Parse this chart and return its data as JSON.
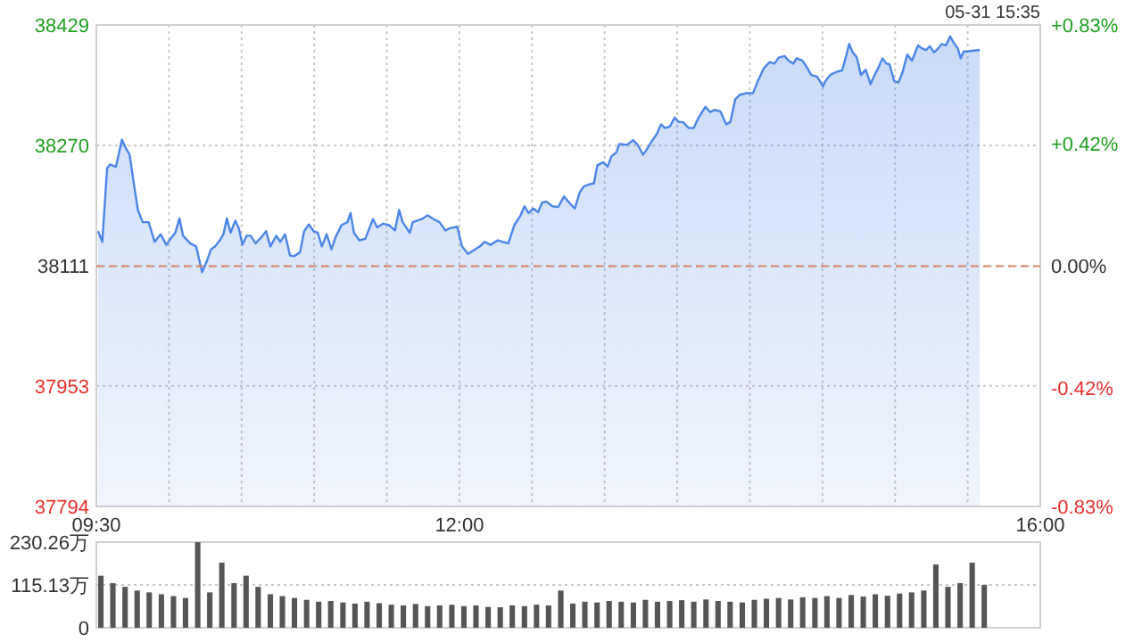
{
  "chart_data": [
    {
      "type": "area",
      "annotations": [
        "05-31 15:35"
      ],
      "color": "#4a86e8",
      "x": [
        9.512,
        9.541,
        9.574,
        9.594,
        9.635,
        9.676,
        9.704,
        9.729,
        9.758,
        9.786,
        9.819,
        9.86,
        9.901,
        9.942,
        9.982,
        10.011,
        10.044,
        10.072,
        10.097,
        10.146,
        10.187,
        10.228,
        10.26,
        10.289,
        10.318,
        10.35,
        10.375,
        10.399,
        10.424,
        10.457,
        10.481,
        10.506,
        10.534,
        10.563,
        10.596,
        10.636,
        10.669,
        10.698,
        10.739,
        10.767,
        10.8,
        10.833,
        10.861,
        10.902,
        10.931,
        10.963,
        10.996,
        11.025,
        11.053,
        11.086,
        11.119,
        11.147,
        11.188,
        11.229,
        11.25,
        11.274,
        11.311,
        11.352,
        11.405,
        11.434,
        11.475,
        11.515,
        11.556,
        11.585,
        11.609,
        11.658,
        11.679,
        11.74,
        11.781,
        11.822,
        11.863,
        11.904,
        11.936,
        11.985,
        12.018,
        12.059,
        12.1,
        12.141,
        12.174,
        12.214,
        12.264,
        12.296,
        12.337,
        12.378,
        12.419,
        12.448,
        12.476,
        12.509,
        12.542,
        12.57,
        12.599,
        12.64,
        12.68,
        12.721,
        12.754,
        12.795,
        12.828,
        12.856,
        12.897,
        12.926,
        12.95,
        12.991,
        13.02,
        13.048,
        13.081,
        13.101,
        13.155,
        13.195,
        13.224,
        13.265,
        13.294,
        13.326,
        13.359,
        13.388,
        13.416,
        13.449,
        13.482,
        13.51,
        13.539,
        13.58,
        13.613,
        13.645,
        13.674,
        13.694,
        13.727,
        13.756,
        13.797,
        13.838,
        13.866,
        13.899,
        13.932,
        13.973,
        14.022,
        14.055,
        14.096,
        14.137,
        14.169,
        14.198,
        14.239,
        14.267,
        14.3,
        14.321,
        14.361,
        14.39,
        14.423,
        14.463,
        14.504,
        14.52,
        14.553,
        14.594,
        14.635,
        14.655,
        14.684,
        14.708,
        14.737,
        14.765,
        14.798,
        14.831,
        14.859,
        14.888,
        14.913,
        14.941,
        14.962,
        14.994,
        15.023,
        15.052,
        15.084,
        15.117,
        15.158,
        15.186,
        15.215,
        15.239,
        15.268,
        15.297,
        15.321,
        15.35,
        15.379,
        15.403,
        15.432,
        15.452,
        15.472,
        15.493,
        15.583
      ],
      "values": [
        38157,
        38143,
        38240,
        38245,
        38242,
        38278,
        38266,
        38258,
        38220,
        38185,
        38169,
        38169,
        38143,
        38153,
        38139,
        38147,
        38155,
        38174,
        38151,
        38141,
        38137,
        38103,
        38117,
        38133,
        38137,
        38145,
        38153,
        38174,
        38155,
        38171,
        38161,
        38139,
        38151,
        38151,
        38141,
        38149,
        38157,
        38137,
        38151,
        38143,
        38153,
        38125,
        38124,
        38129,
        38157,
        38166,
        38157,
        38155,
        38137,
        38153,
        38133,
        38149,
        38165,
        38169,
        38181,
        38155,
        38145,
        38147,
        38173,
        38162,
        38167,
        38165,
        38158,
        38185,
        38169,
        38155,
        38169,
        38173,
        38178,
        38173,
        38169,
        38158,
        38161,
        38163,
        38137,
        38127,
        38132,
        38137,
        38143,
        38139,
        38145,
        38143,
        38141,
        38165,
        38177,
        38190,
        38181,
        38187,
        38182,
        38195,
        38196,
        38190,
        38189,
        38203,
        38195,
        38187,
        38208,
        38216,
        38219,
        38220,
        38244,
        38248,
        38242,
        38256,
        38261,
        38272,
        38271,
        38277,
        38272,
        38258,
        38266,
        38276,
        38285,
        38298,
        38293,
        38295,
        38307,
        38301,
        38301,
        38293,
        38293,
        38306,
        38315,
        38321,
        38314,
        38317,
        38315,
        38298,
        38301,
        38331,
        38337,
        38339,
        38339,
        38355,
        38372,
        38380,
        38378,
        38386,
        38388,
        38382,
        38378,
        38385,
        38382,
        38374,
        38363,
        38361,
        38348,
        38355,
        38363,
        38367,
        38369,
        38382,
        38404,
        38393,
        38386,
        38363,
        38370,
        38351,
        38363,
        38374,
        38385,
        38378,
        38377,
        38355,
        38353,
        38367,
        38390,
        38382,
        38402,
        38398,
        38396,
        38401,
        38393,
        38398,
        38404,
        38402,
        38414,
        38406,
        38398,
        38385,
        38394,
        38394,
        38396
      ],
      "xlim": [
        9.5,
        16
      ],
      "xticks": [
        {
          "value": 9.5,
          "label": "09:30"
        },
        {
          "value": 10,
          "label": null
        },
        {
          "value": 10.5,
          "label": null
        },
        {
          "value": 11,
          "label": null
        },
        {
          "value": 11.5,
          "label": null
        },
        {
          "value": 12,
          "label": "12:00"
        },
        {
          "value": 12.5,
          "label": null
        },
        {
          "value": 13,
          "label": null
        },
        {
          "value": 13.5,
          "label": null
        },
        {
          "value": 14,
          "label": null
        },
        {
          "value": 14.5,
          "label": null
        },
        {
          "value": 15,
          "label": null
        },
        {
          "value": 15.5,
          "label": null
        },
        {
          "value": 16,
          "label": "16:00"
        }
      ],
      "ylim": [
        37794,
        38429
      ],
      "yticks": [
        37794,
        37953,
        38111,
        38270,
        38429
      ],
      "y2lim": [
        -0.83,
        0.83
      ],
      "y2ticks": [
        {
          "value": -0.83,
          "label": "-0.83%"
        },
        {
          "value": -0.42,
          "label": "-0.42%"
        },
        {
          "value": 0,
          "label": "0.00%"
        },
        {
          "value": 0.42,
          "label": "+0.42%"
        },
        {
          "value": 0.83,
          "label": "+0.83%"
        }
      ],
      "ref_lines": [
        {
          "axis": "y",
          "value": 38111,
          "color": "#e0825c",
          "line_style": "dashed"
        }
      ],
      "grid": true
    },
    {
      "type": "bar",
      "color": "#555555",
      "tick_labels": "y",
      "grid": "y",
      "x": [
        9.5,
        9.583,
        9.667,
        9.75,
        9.833,
        9.917,
        10,
        10.083,
        10.167,
        10.25,
        10.333,
        10.417,
        10.5,
        10.583,
        10.667,
        10.75,
        10.833,
        10.917,
        11,
        11.083,
        11.167,
        11.25,
        11.333,
        11.417,
        11.5,
        11.583,
        11.667,
        11.75,
        11.833,
        11.917,
        12,
        12.083,
        12.167,
        12.25,
        12.333,
        12.417,
        12.5,
        12.583,
        12.667,
        12.75,
        12.833,
        12.917,
        13,
        13.083,
        13.167,
        13.25,
        13.333,
        13.417,
        13.5,
        13.583,
        13.667,
        13.75,
        13.833,
        13.917,
        14,
        14.083,
        14.167,
        14.25,
        14.333,
        14.417,
        14.5,
        14.583,
        14.667,
        14.75,
        14.833,
        14.917,
        15,
        15.083,
        15.167,
        15.25,
        15.333,
        15.417,
        15.5,
        15.583
      ],
      "values": [
        140,
        120,
        110,
        100,
        95,
        90,
        85,
        80,
        230,
        95,
        175,
        120,
        140,
        110,
        90,
        85,
        80,
        75,
        70,
        72,
        68,
        65,
        70,
        66,
        62,
        60,
        64,
        58,
        60,
        62,
        58,
        60,
        56,
        55,
        60,
        58,
        62,
        60,
        100,
        65,
        70,
        68,
        72,
        70,
        68,
        75,
        70,
        72,
        74,
        70,
        76,
        72,
        70,
        68,
        75,
        78,
        80,
        76,
        82,
        80,
        85,
        80,
        88,
        84,
        90,
        86,
        92,
        95,
        100,
        170,
        110,
        120,
        175,
        115
      ],
      "xlim": [
        9.5,
        16
      ],
      "ylim": [
        0,
        230.26
      ],
      "yticks": [
        0,
        {
          "value": 115.13,
          "label": "115.13万"
        },
        {
          "value": 230.26,
          "label": "230.26万"
        }
      ]
    }
  ]
}
